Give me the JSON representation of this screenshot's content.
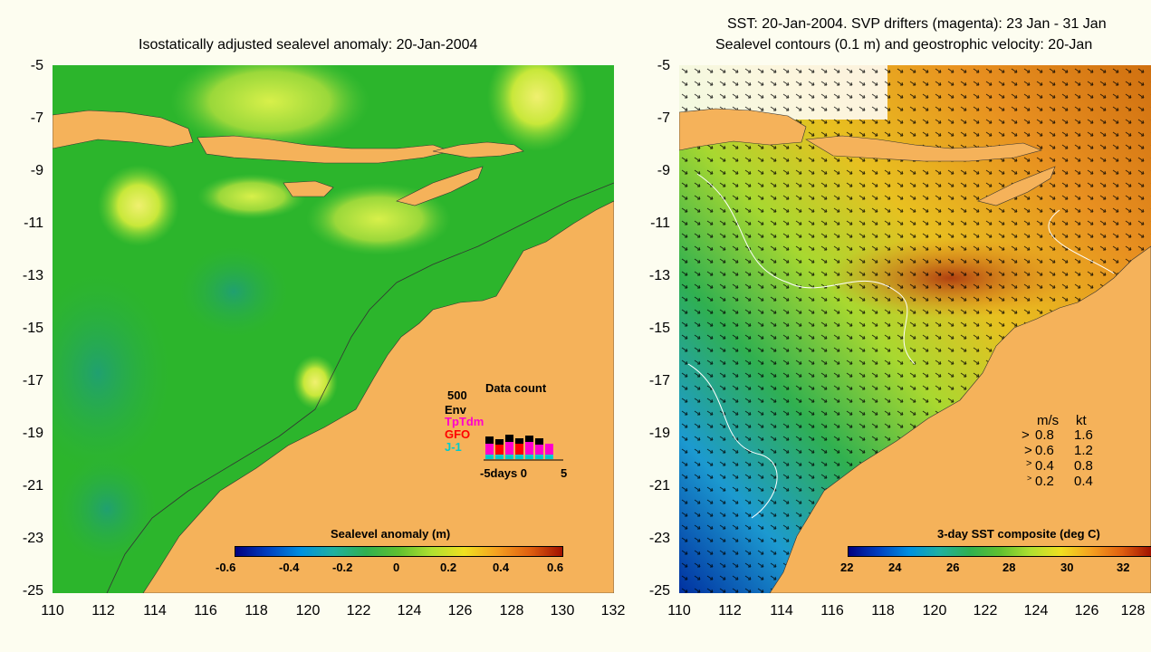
{
  "left_panel": {
    "title": "Isostatically adjusted sealevel anomaly: 20-Jan-2004",
    "colorbar_title": "Sealevel anomaly (m)",
    "colorbar_ticks": [
      "-0.6",
      "-0.4",
      "-0.2",
      "0",
      "0.2",
      "0.4",
      "0.6"
    ],
    "x_ticks": [
      "110",
      "112",
      "114",
      "116",
      "118",
      "120",
      "122",
      "124",
      "126",
      "128",
      "130",
      "132"
    ],
    "y_ticks": [
      "-5",
      "-7",
      "-9",
      "-11",
      "-13",
      "-15",
      "-17",
      "-19",
      "-21",
      "-23",
      "-25"
    ],
    "data_count": {
      "title": "Data count",
      "max_label": "500",
      "series": [
        {
          "name": "Env",
          "color": "#000000"
        },
        {
          "name": "TpTdm",
          "color": "#ff00cc"
        },
        {
          "name": "GFO",
          "color": "#ff0000"
        },
        {
          "name": "J-1",
          "color": "#00cccc"
        }
      ],
      "x_axis_label": "-5days 0",
      "x_axis_end": "5"
    }
  },
  "right_panel": {
    "title_line1": "SST: 20-Jan-2004. SVP drifters (magenta): 23 Jan - 31 Jan",
    "title_line2": "Sealevel contours (0.1 m) and geostrophic velocity: 20-Jan",
    "colorbar_title": "3-day SST composite (deg C)",
    "colorbar_ticks": [
      "22",
      "24",
      "26",
      "28",
      "30",
      "32"
    ],
    "x_ticks": [
      "110",
      "112",
      "114",
      "116",
      "118",
      "120",
      "122",
      "124",
      "126",
      "128"
    ],
    "y_ticks": [
      "-5",
      "-7",
      "-9",
      "-11",
      "-13",
      "-15",
      "-17",
      "-19",
      "-21",
      "-23",
      "-25"
    ],
    "velocity_legend": {
      "header_ms": "m/s",
      "header_kt": "kt",
      "rows": [
        {
          "ms": "0.8",
          "kt": "1.6"
        },
        {
          "ms": "0.6",
          "kt": "1.2"
        },
        {
          "ms": "0.4",
          "kt": "0.8"
        },
        {
          "ms": "0.2",
          "kt": "0.4"
        }
      ]
    }
  },
  "colors": {
    "land": "#f5b25a",
    "ocean_green": "#2cb52c",
    "background": "#fdfdf0"
  }
}
